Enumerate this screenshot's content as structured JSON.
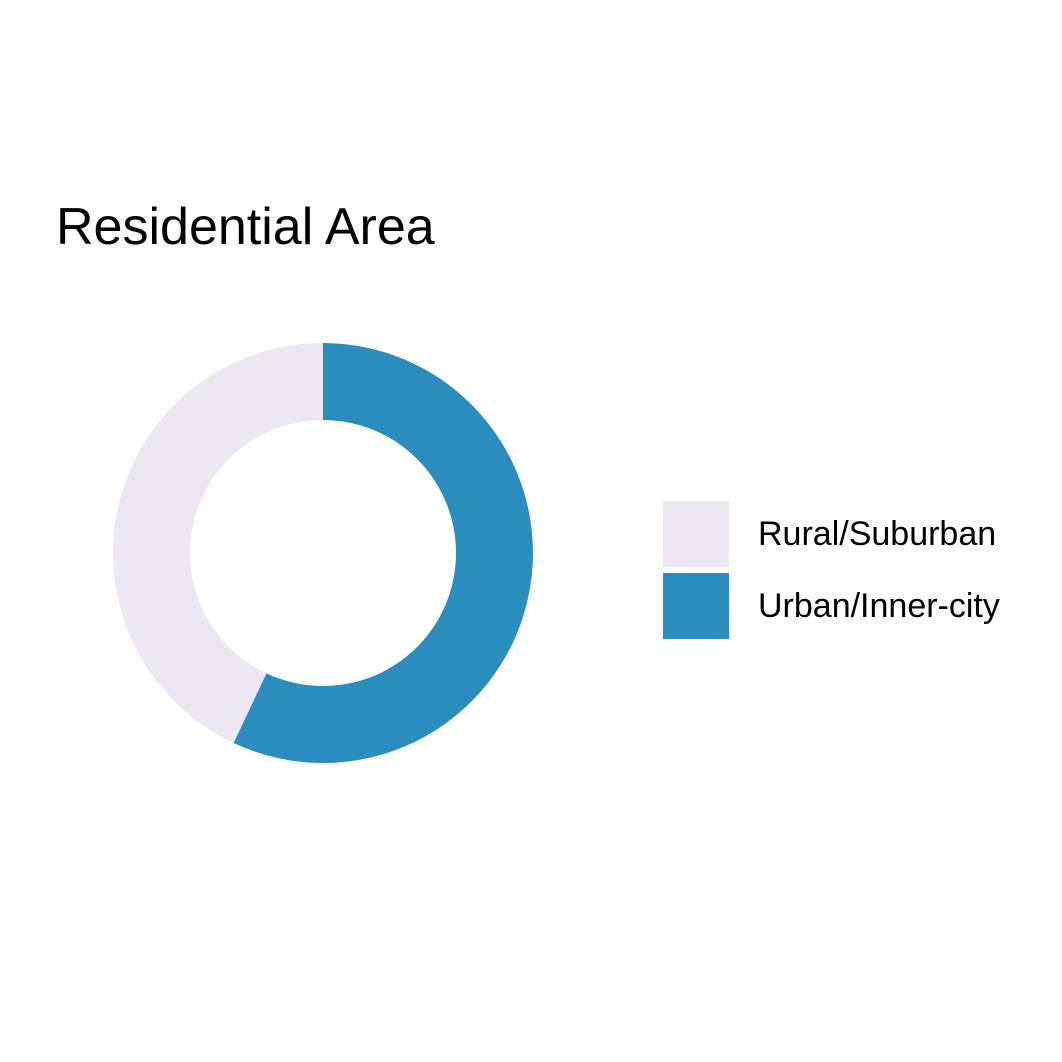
{
  "chart_data": {
    "type": "pie",
    "style": "donut",
    "title": "Residential Area",
    "categories": [
      "Rural/Suburban",
      "Urban/Inner-city"
    ],
    "values": [
      43,
      57
    ],
    "colors": [
      "#ECE7F2",
      "#2B8CBE"
    ],
    "legend": {
      "position": "right",
      "items": [
        {
          "label": "Rural/Suburban",
          "color": "#ECE7F2"
        },
        {
          "label": "Urban/Inner-city",
          "color": "#2B8CBE"
        }
      ]
    }
  }
}
